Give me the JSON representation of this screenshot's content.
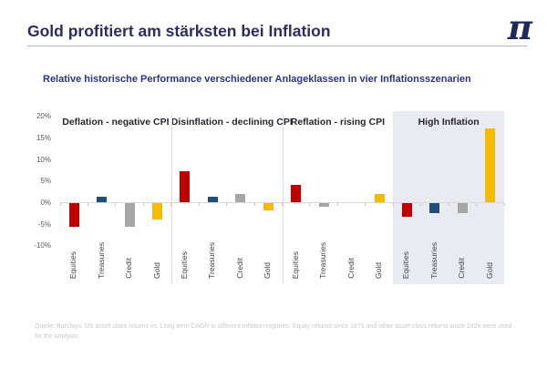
{
  "header": {
    "title": "Gold profitiert am stärksten bei Inflation",
    "logo_glyph": "π"
  },
  "subtitle": "Relative historische Performance verschiedener Anlageklassen in vier Inflationsszenarien",
  "footnote": "Quelle: Barclays. US asset class returns vs. Long term CAGR in different inflation regimes. Equity returns since 1871 and other asset class returns since 1928 were used for the analysis.",
  "colors": {
    "equities": "#c00000",
    "treasuries": "#1f4e79",
    "credit": "#a6a6a6",
    "gold": "#f5bb00",
    "highlight_bg": "#e9ebf2",
    "accent_navy": "#2d2e5f"
  },
  "chart_data": {
    "type": "bar",
    "title": "Relative historische Performance verschiedener Anlageklassen in vier Inflationsszenarien",
    "xlabel": "",
    "ylabel": "",
    "ylim": [
      -10,
      20
    ],
    "y_ticks": [
      20,
      15,
      10,
      5,
      0,
      -5,
      -10
    ],
    "y_tick_format": "%",
    "grid": false,
    "legend": false,
    "categories": [
      "Equities",
      "Treasuries",
      "Credit",
      "Gold"
    ],
    "panels": [
      {
        "title": "Deflation - negative CPI",
        "highlighted": false,
        "bars": [
          {
            "label": "Equities",
            "value": -5.5,
            "color": "#c00000"
          },
          {
            "label": "Treasuries",
            "value": 1.2,
            "color": "#1f4e79"
          },
          {
            "label": "Credit",
            "value": -5.4,
            "color": "#a6a6a6"
          },
          {
            "label": "Gold",
            "value": -3.9,
            "color": "#f5bb00"
          }
        ]
      },
      {
        "title": "Disinflation - declining CPI",
        "highlighted": false,
        "bars": [
          {
            "label": "Equities",
            "value": 7.2,
            "color": "#c00000"
          },
          {
            "label": "Treasuries",
            "value": 1.2,
            "color": "#1f4e79"
          },
          {
            "label": "Credit",
            "value": 1.9,
            "color": "#a6a6a6"
          },
          {
            "label": "Gold",
            "value": -1.6,
            "color": "#f5bb00"
          }
        ]
      },
      {
        "title": "Reflation - rising CPI",
        "highlighted": false,
        "bars": [
          {
            "label": "Equities",
            "value": 4.0,
            "color": "#c00000"
          },
          {
            "label": "Treasuries",
            "value": -0.8,
            "color": "#a6a6a6"
          },
          {
            "label": "Credit",
            "value": 0.0,
            "color": "#a6a6a6"
          },
          {
            "label": "Gold",
            "value": 2.0,
            "color": "#f5bb00"
          }
        ]
      },
      {
        "title": "High Inflation",
        "highlighted": true,
        "bars": [
          {
            "label": "Equities",
            "value": -3.2,
            "color": "#c00000"
          },
          {
            "label": "Treasuries",
            "value": -2.3,
            "color": "#1f4e79"
          },
          {
            "label": "Credit",
            "value": -2.4,
            "color": "#a6a6a6"
          },
          {
            "label": "Gold",
            "value": 17.0,
            "color": "#f5bb00"
          }
        ]
      }
    ]
  }
}
